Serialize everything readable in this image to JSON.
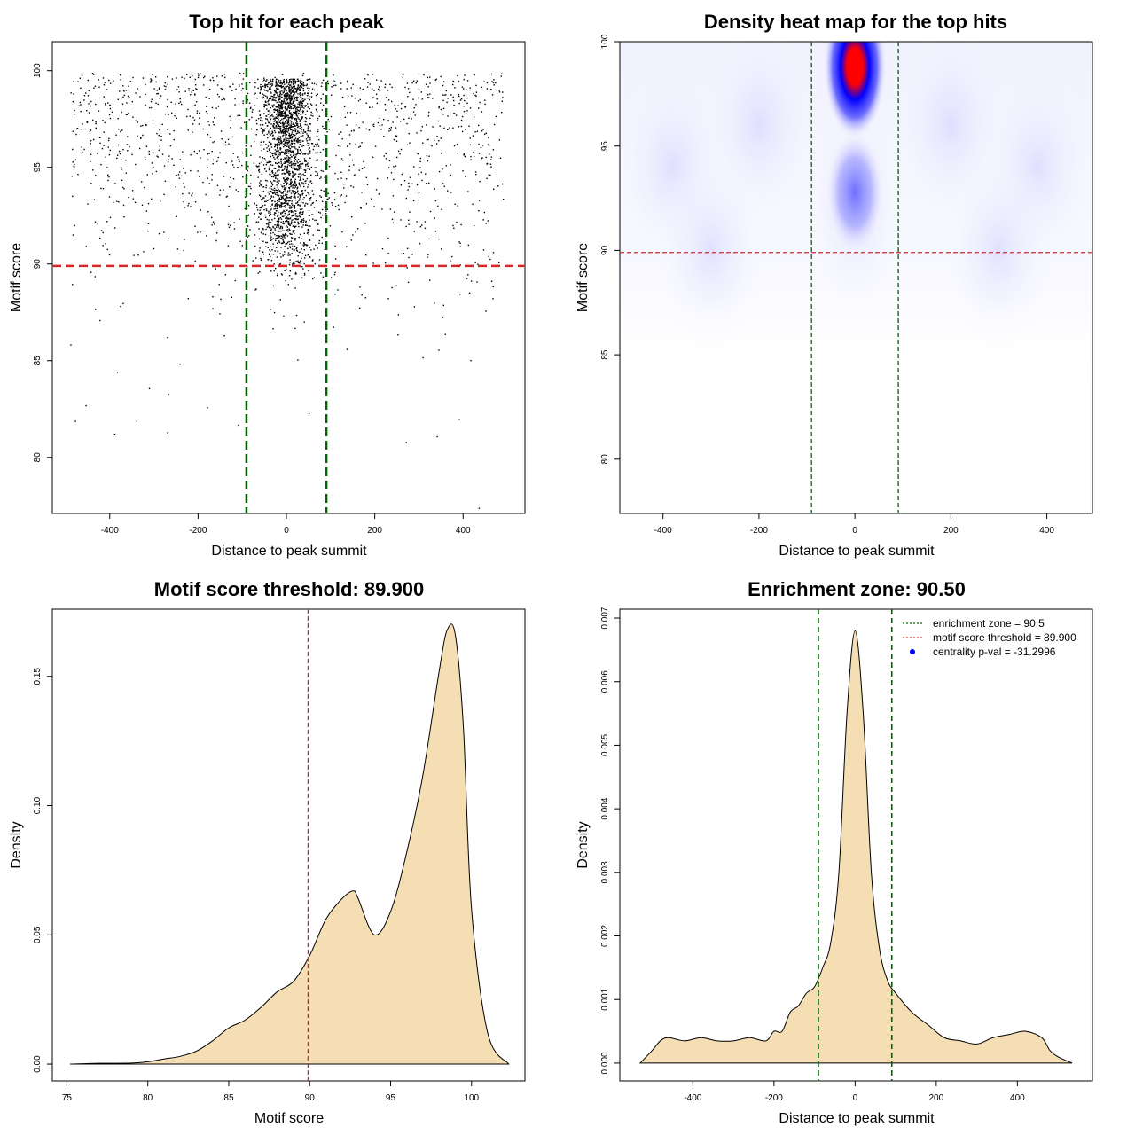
{
  "chart_data": [
    {
      "type": "scatter",
      "title": "Top hit for each peak",
      "xlabel": "Distance to peak summit",
      "ylabel": "Motif score",
      "xlim": [
        -530,
        540
      ],
      "ylim": [
        77.1,
        101.5
      ],
      "xticks": [
        -400,
        -200,
        0,
        200,
        400
      ],
      "yticks": [
        80,
        85,
        90,
        95,
        100
      ],
      "xtick_labels": [
        "-400",
        "-200",
        "0",
        "200",
        "400"
      ],
      "ytick_labels": [
        "80",
        "85",
        "90",
        "95",
        "100"
      ],
      "hline": {
        "y": 89.9,
        "color": "#d62728"
      },
      "vlines": [
        {
          "x": -90.5,
          "color": "#006400"
        },
        {
          "x": 90.5,
          "color": "#006400"
        }
      ],
      "points_note": "dense cloud of ~3000 points concentrated near x=0 and high scores"
    },
    {
      "type": "heatmap",
      "title": "Density heat map for the top hits",
      "xlabel": "Distance to peak summit",
      "ylabel": "Motif score",
      "xlim": [
        -490,
        495
      ],
      "ylim": [
        77.4,
        100
      ],
      "xticks": [
        -400,
        -200,
        0,
        200,
        400
      ],
      "yticks": [
        80,
        85,
        90,
        95,
        100
      ],
      "xtick_labels": [
        "-400",
        "-200",
        "0",
        "200",
        "400"
      ],
      "ytick_labels": [
        "80",
        "85",
        "90",
        "95",
        "100"
      ],
      "hline": {
        "y": 89.9,
        "color": "#d62728"
      },
      "vlines": [
        {
          "x": -90.5,
          "color": "#006400"
        },
        {
          "x": 90.5,
          "color": "#006400"
        }
      ],
      "hotspots": [
        {
          "x": 0,
          "y": 98.8,
          "intensity": "peak"
        },
        {
          "x": 0,
          "y": 92.8,
          "intensity": "medium"
        }
      ]
    },
    {
      "type": "area",
      "title": "Motif score threshold: 89.900",
      "xlabel": "Motif score",
      "ylabel": "Density",
      "xlim": [
        74.1,
        103.3
      ],
      "ylim": [
        -0.0065,
        0.176
      ],
      "xticks": [
        75,
        80,
        85,
        90,
        95,
        100
      ],
      "yticks": [
        0.0,
        0.05,
        0.1,
        0.15
      ],
      "xtick_labels": [
        "75",
        "80",
        "85",
        "90",
        "95",
        "100"
      ],
      "ytick_labels": [
        "0.00",
        "0.05",
        "0.10",
        "0.15"
      ],
      "vline": {
        "x": 89.9,
        "color": "#d62728"
      },
      "fill_color": "#f5deb3",
      "x": [
        75.2,
        77,
        79,
        80,
        81,
        82,
        83,
        84,
        85,
        86,
        87,
        88,
        89,
        90,
        91,
        92,
        92.7,
        93,
        94,
        95,
        96,
        97,
        98,
        98.5,
        99,
        99.5,
        100,
        101,
        102.3
      ],
      "y": [
        0.0,
        0.0003,
        0.0004,
        0.0009,
        0.002,
        0.003,
        0.005,
        0.009,
        0.014,
        0.017,
        0.022,
        0.028,
        0.032,
        0.042,
        0.056,
        0.064,
        0.067,
        0.064,
        0.05,
        0.059,
        0.082,
        0.112,
        0.152,
        0.168,
        0.166,
        0.13,
        0.06,
        0.012,
        0.0
      ]
    },
    {
      "type": "area",
      "title": "Enrichment zone: 90.50",
      "xlabel": "Distance to peak summit",
      "ylabel": "Density",
      "xlim": [
        -580,
        585
      ],
      "ylim": [
        -0.00028,
        0.00714
      ],
      "xticks": [
        -400,
        -200,
        0,
        200,
        400
      ],
      "yticks": [
        0.0,
        0.001,
        0.002,
        0.003,
        0.004,
        0.005,
        0.006,
        0.007
      ],
      "xtick_labels": [
        "-400",
        "-200",
        "0",
        "200",
        "400"
      ],
      "ytick_labels": [
        "0.000",
        "0.001",
        "0.002",
        "0.003",
        "0.004",
        "0.005",
        "0.006",
        "0.007"
      ],
      "vlines": [
        {
          "x": -90.5,
          "color": "#006400"
        },
        {
          "x": 90.5,
          "color": "#006400"
        }
      ],
      "fill_color": "#f5deb3",
      "x": [
        -530,
        -500,
        -480,
        -460,
        -420,
        -380,
        -340,
        -300,
        -260,
        -220,
        -200,
        -180,
        -160,
        -140,
        -120,
        -100,
        -80,
        -60,
        -40,
        -20,
        0,
        20,
        40,
        60,
        80,
        100,
        140,
        180,
        220,
        260,
        300,
        340,
        380,
        420,
        460,
        480,
        500,
        535
      ],
      "y": [
        0.0,
        0.0002,
        0.00035,
        0.0004,
        0.00035,
        0.0004,
        0.00035,
        0.00035,
        0.0004,
        0.00035,
        0.0005,
        0.0005,
        0.0008,
        0.0009,
        0.0011,
        0.0012,
        0.0015,
        0.0019,
        0.003,
        0.0055,
        0.0068,
        0.0055,
        0.003,
        0.0018,
        0.0013,
        0.0011,
        0.0008,
        0.0006,
        0.0004,
        0.00035,
        0.0003,
        0.0004,
        0.00045,
        0.0005,
        0.0004,
        0.0002,
        0.0001,
        0.0
      ],
      "legend": [
        {
          "label": "enrichment zone = 90.5",
          "color": "#006400",
          "style": "dotted-line"
        },
        {
          "label": "motif score threshold = 89.900",
          "color": "#d62728",
          "style": "dotted-line"
        },
        {
          "label": "centrality p-val = -31.2996",
          "color": "#0000ff",
          "style": "point"
        }
      ]
    }
  ]
}
